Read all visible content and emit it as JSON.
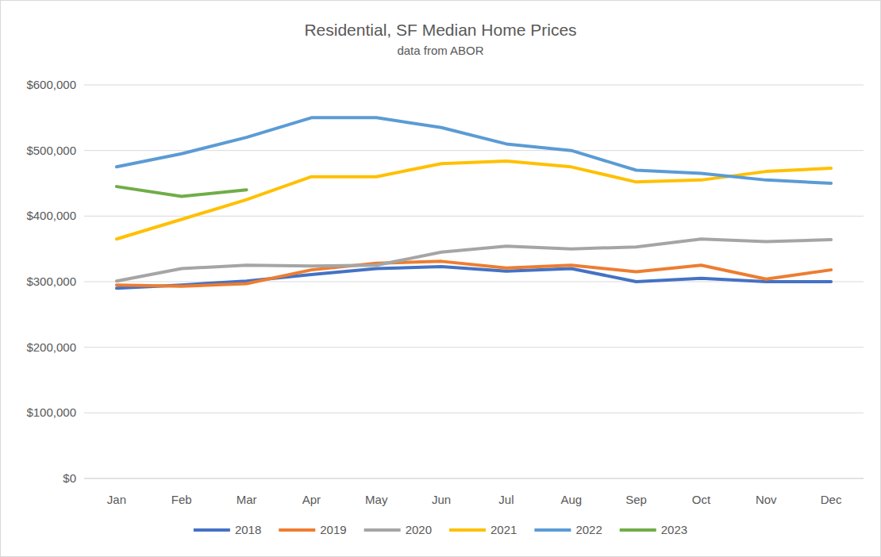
{
  "chart_data": {
    "type": "line",
    "title": "Residential, SF Median Home Prices",
    "subtitle": "data from ABOR",
    "categories": [
      "Jan",
      "Feb",
      "Mar",
      "Apr",
      "May",
      "Jun",
      "Jul",
      "Aug",
      "Sep",
      "Oct",
      "Nov",
      "Dec"
    ],
    "series": [
      {
        "name": "2018",
        "color": "#4472c4",
        "values": [
          290000,
          295000,
          301000,
          311000,
          320000,
          323000,
          316000,
          320000,
          300000,
          305000,
          300000,
          300000
        ]
      },
      {
        "name": "2019",
        "color": "#ed7d31",
        "values": [
          295000,
          293000,
          297000,
          318000,
          328000,
          331000,
          321000,
          325000,
          315000,
          325000,
          304000,
          318000
        ]
      },
      {
        "name": "2020",
        "color": "#a5a5a5",
        "values": [
          301000,
          320000,
          325000,
          324000,
          325000,
          345000,
          354000,
          350000,
          353000,
          365000,
          361000,
          364000
        ]
      },
      {
        "name": "2021",
        "color": "#ffc000",
        "values": [
          365000,
          395000,
          425000,
          460000,
          460000,
          480000,
          484000,
          475000,
          452000,
          455000,
          468000,
          473000
        ]
      },
      {
        "name": "2022",
        "color": "#5b9bd5",
        "values": [
          475000,
          495000,
          520000,
          550000,
          550000,
          535000,
          510000,
          500000,
          470000,
          465000,
          455000,
          450000
        ]
      },
      {
        "name": "2023",
        "color": "#70ad47",
        "values": [
          445000,
          430000,
          440000,
          null,
          null,
          null,
          null,
          null,
          null,
          null,
          null,
          null
        ]
      }
    ],
    "ylim": [
      0,
      600000
    ],
    "yticks": [
      {
        "value": 0,
        "label": "$0"
      },
      {
        "value": 100000,
        "label": "$100,000"
      },
      {
        "value": 200000,
        "label": "$200,000"
      },
      {
        "value": 300000,
        "label": "$300,000"
      },
      {
        "value": 400000,
        "label": "$400,000"
      },
      {
        "value": 500000,
        "label": "$500,000"
      },
      {
        "value": 600000,
        "label": "$600,000"
      }
    ],
    "grid": true,
    "legend": "bottom"
  }
}
